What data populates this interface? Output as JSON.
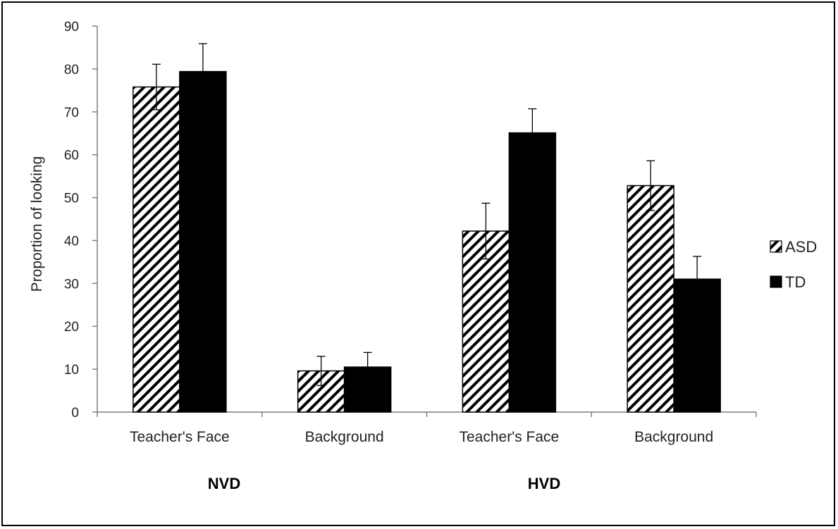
{
  "chart_data": {
    "type": "bar",
    "ylabel": "Proportion of looking",
    "ylim": [
      0,
      90
    ],
    "yticks": [
      0,
      10,
      20,
      30,
      40,
      50,
      60,
      70,
      80,
      90
    ],
    "grid": false,
    "legend_position": "right",
    "groups": [
      {
        "label": "NVD",
        "categories": [
          "Teacher's Face",
          "Background"
        ]
      },
      {
        "label": "HVD",
        "categories": [
          "Teacher's Face",
          "Background"
        ]
      }
    ],
    "categories": [
      "Teacher's Face",
      "Background",
      "Teacher's Face",
      "Background"
    ],
    "series": [
      {
        "name": "ASD",
        "pattern": "diagonal-hatch",
        "color": "#000000",
        "values": [
          75.8,
          9.6,
          42.2,
          52.8
        ],
        "error": [
          5.3,
          3.4,
          6.5,
          5.8
        ]
      },
      {
        "name": "TD",
        "pattern": "solid",
        "color": "#000000",
        "values": [
          79.4,
          10.5,
          65.1,
          31.0
        ],
        "error": [
          6.5,
          3.4,
          5.6,
          5.3
        ]
      }
    ]
  }
}
